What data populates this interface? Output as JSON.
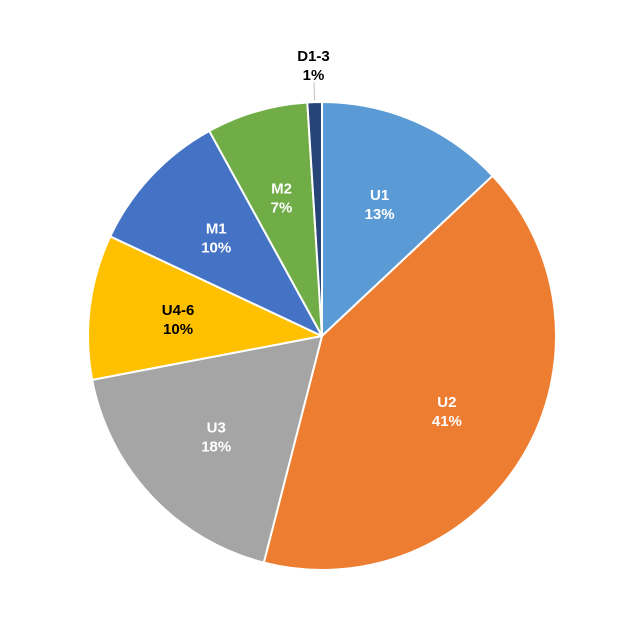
{
  "chart_data": {
    "type": "pie",
    "title": "",
    "start_angle_deg": 0,
    "direction": "clockwise",
    "slices": [
      {
        "label": "U1",
        "value": 13,
        "display": "13%",
        "color": "#5B9BD5",
        "label_color": "#ffffff"
      },
      {
        "label": "U2",
        "value": 41,
        "display": "41%",
        "color": "#ED7D31",
        "label_color": "#ffffff"
      },
      {
        "label": "U3",
        "value": 18,
        "display": "18%",
        "color": "#A5A5A5",
        "label_color": "#ffffff"
      },
      {
        "label": "U4-6",
        "value": 10,
        "display": "10%",
        "color": "#FFC000",
        "label_color": "#000000"
      },
      {
        "label": "M1",
        "value": 10,
        "display": "10%",
        "color": "#4472C4",
        "label_color": "#ffffff"
      },
      {
        "label": "M2",
        "value": 7,
        "display": "7%",
        "color": "#70AD47",
        "label_color": "#ffffff"
      },
      {
        "label": "D1-3",
        "value": 1,
        "display": "1%",
        "color": "#264478",
        "label_color": "#000000",
        "label_outside": true
      }
    ]
  }
}
